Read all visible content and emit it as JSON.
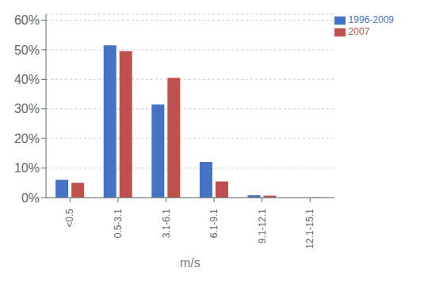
{
  "chart_data": {
    "type": "bar",
    "categories": [
      "<0.5",
      "0.5-3.1",
      "3.1-6.1",
      "6.1-9.1",
      "9.1-12.1",
      "12.1-15.1"
    ],
    "series": [
      {
        "name": "1996-2009",
        "color": "#4472C4",
        "values": [
          0.06,
          0.515,
          0.315,
          0.12,
          0.008,
          0.0
        ]
      },
      {
        "name": "2007",
        "color": "#C0504D",
        "values": [
          0.05,
          0.495,
          0.405,
          0.055,
          0.007,
          0.001
        ]
      }
    ],
    "xlabel": "m/s",
    "ylim": [
      0,
      0.62
    ],
    "yticks": [
      {
        "value": 0.0,
        "label": "0%"
      },
      {
        "value": 0.1,
        "label": "10%"
      },
      {
        "value": 0.2,
        "label": "20%"
      },
      {
        "value": 0.3,
        "label": "30%"
      },
      {
        "value": 0.4,
        "label": "40%"
      },
      {
        "value": 0.5,
        "label": "50%"
      },
      {
        "value": 0.6,
        "label": "60%"
      }
    ],
    "grid": true,
    "legend": "upper right"
  }
}
